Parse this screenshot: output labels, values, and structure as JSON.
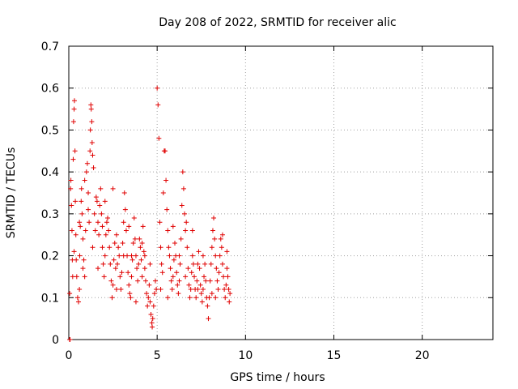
{
  "chart_data": {
    "type": "scatter",
    "title": "Day 208 of 2022, SRMTID for receiver alic",
    "xlabel": "GPS time / hours",
    "ylabel": "SRMTID / TECUs",
    "xlim": [
      0,
      24
    ],
    "ylim": [
      0,
      0.7
    ],
    "xticks": [
      0,
      5,
      10,
      15,
      20
    ],
    "xtick_labels": [
      "0",
      "5",
      "10",
      "15",
      "20"
    ],
    "yticks": [
      0,
      0.1,
      0.2,
      0.3,
      0.4,
      0.5,
      0.6,
      0.7
    ],
    "ytick_labels": [
      "0",
      "0.1",
      "0.2",
      "0.3",
      "0.4",
      "0.5",
      "0.6",
      "0.7"
    ],
    "grid": true,
    "marker": "+",
    "series_color": "#e00000",
    "series": [
      {
        "name": "SRMTID",
        "points": [
          [
            0.05,
            0.0
          ],
          [
            0.07,
            0.0
          ],
          [
            0.05,
            0.11
          ],
          [
            0.1,
            0.36
          ],
          [
            0.12,
            0.38
          ],
          [
            0.15,
            0.32
          ],
          [
            0.18,
            0.26
          ],
          [
            0.2,
            0.19
          ],
          [
            0.22,
            0.15
          ],
          [
            0.25,
            0.43
          ],
          [
            0.27,
            0.52
          ],
          [
            0.3,
            0.55
          ],
          [
            0.32,
            0.57
          ],
          [
            0.35,
            0.45
          ],
          [
            0.37,
            0.33
          ],
          [
            0.4,
            0.25
          ],
          [
            0.42,
            0.19
          ],
          [
            0.45,
            0.15
          ],
          [
            0.5,
            0.1
          ],
          [
            0.55,
            0.09
          ],
          [
            0.6,
            0.12
          ],
          [
            0.62,
            0.2
          ],
          [
            0.65,
            0.27
          ],
          [
            0.7,
            0.33
          ],
          [
            0.72,
            0.36
          ],
          [
            0.75,
            0.3
          ],
          [
            0.8,
            0.24
          ],
          [
            0.85,
            0.19
          ],
          [
            0.9,
            0.15
          ],
          [
            0.95,
            0.26
          ],
          [
            1.0,
            0.4
          ],
          [
            1.05,
            0.42
          ],
          [
            1.1,
            0.35
          ],
          [
            1.15,
            0.28
          ],
          [
            1.2,
            0.45
          ],
          [
            1.22,
            0.5
          ],
          [
            1.25,
            0.56
          ],
          [
            1.27,
            0.55
          ],
          [
            1.3,
            0.52
          ],
          [
            1.32,
            0.47
          ],
          [
            1.35,
            0.44
          ],
          [
            1.4,
            0.41
          ],
          [
            1.45,
            0.3
          ],
          [
            1.5,
            0.26
          ],
          [
            1.55,
            0.34
          ],
          [
            1.6,
            0.33
          ],
          [
            1.65,
            0.28
          ],
          [
            1.7,
            0.25
          ],
          [
            1.75,
            0.32
          ],
          [
            1.8,
            0.36
          ],
          [
            1.85,
            0.3
          ],
          [
            1.9,
            0.22
          ],
          [
            1.95,
            0.18
          ],
          [
            2.0,
            0.15
          ],
          [
            2.05,
            0.2
          ],
          [
            2.1,
            0.25
          ],
          [
            2.15,
            0.28
          ],
          [
            2.2,
            0.29
          ],
          [
            2.25,
            0.26
          ],
          [
            2.3,
            0.22
          ],
          [
            2.35,
            0.18
          ],
          [
            2.4,
            0.14
          ],
          [
            2.45,
            0.1
          ],
          [
            2.5,
            0.13
          ],
          [
            2.55,
            0.19
          ],
          [
            2.6,
            0.23
          ],
          [
            2.65,
            0.17
          ],
          [
            2.7,
            0.12
          ],
          [
            2.75,
            0.18
          ],
          [
            2.8,
            0.22
          ],
          [
            2.85,
            0.2
          ],
          [
            2.9,
            0.15
          ],
          [
            2.95,
            0.12
          ],
          [
            3.0,
            0.16
          ],
          [
            3.05,
            0.23
          ],
          [
            3.1,
            0.28
          ],
          [
            3.15,
            0.35
          ],
          [
            3.2,
            0.31
          ],
          [
            3.25,
            0.26
          ],
          [
            3.3,
            0.2
          ],
          [
            3.35,
            0.16
          ],
          [
            3.4,
            0.13
          ],
          [
            3.45,
            0.11
          ],
          [
            3.5,
            0.1
          ],
          [
            3.55,
            0.15
          ],
          [
            3.6,
            0.19
          ],
          [
            3.65,
            0.23
          ],
          [
            3.7,
            0.29
          ],
          [
            3.75,
            0.24
          ],
          [
            3.8,
            0.2
          ],
          [
            3.85,
            0.17
          ],
          [
            3.9,
            0.14
          ],
          [
            3.95,
            0.18
          ],
          [
            4.0,
            0.24
          ],
          [
            4.05,
            0.22
          ],
          [
            4.1,
            0.19
          ],
          [
            4.15,
            0.23
          ],
          [
            4.2,
            0.27
          ],
          [
            4.25,
            0.21
          ],
          [
            4.3,
            0.17
          ],
          [
            4.35,
            0.14
          ],
          [
            4.4,
            0.11
          ],
          [
            4.45,
            0.08
          ],
          [
            4.5,
            0.1
          ],
          [
            4.55,
            0.13
          ],
          [
            4.6,
            0.09
          ],
          [
            4.65,
            0.06
          ],
          [
            4.7,
            0.04
          ],
          [
            4.72,
            0.03
          ],
          [
            4.75,
            0.05
          ],
          [
            4.8,
            0.08
          ],
          [
            4.85,
            0.11
          ],
          [
            4.9,
            0.14
          ],
          [
            4.95,
            0.12
          ],
          [
            5.0,
            0.6
          ],
          [
            5.05,
            0.56
          ],
          [
            5.1,
            0.48
          ],
          [
            5.15,
            0.28
          ],
          [
            5.2,
            0.22
          ],
          [
            5.25,
            0.18
          ],
          [
            5.3,
            0.16
          ],
          [
            5.35,
            0.35
          ],
          [
            5.4,
            0.45
          ],
          [
            5.45,
            0.45
          ],
          [
            5.5,
            0.38
          ],
          [
            5.55,
            0.31
          ],
          [
            5.6,
            0.26
          ],
          [
            5.65,
            0.22
          ],
          [
            5.7,
            0.2
          ],
          [
            5.75,
            0.17
          ],
          [
            5.8,
            0.14
          ],
          [
            5.85,
            0.12
          ],
          [
            5.9,
            0.15
          ],
          [
            5.95,
            0.19
          ],
          [
            6.0,
            0.23
          ],
          [
            6.05,
            0.2
          ],
          [
            6.1,
            0.16
          ],
          [
            6.15,
            0.13
          ],
          [
            6.2,
            0.11
          ],
          [
            6.25,
            0.14
          ],
          [
            6.3,
            0.18
          ],
          [
            6.35,
            0.24
          ],
          [
            6.4,
            0.32
          ],
          [
            6.45,
            0.4
          ],
          [
            6.5,
            0.36
          ],
          [
            6.55,
            0.3
          ],
          [
            6.6,
            0.26
          ],
          [
            6.65,
            0.28
          ],
          [
            6.7,
            0.22
          ],
          [
            6.75,
            0.17
          ],
          [
            6.8,
            0.13
          ],
          [
            6.85,
            0.1
          ],
          [
            6.9,
            0.12
          ],
          [
            6.95,
            0.16
          ],
          [
            7.0,
            0.2
          ],
          [
            7.05,
            0.18
          ],
          [
            7.1,
            0.15
          ],
          [
            7.15,
            0.12
          ],
          [
            7.2,
            0.1
          ],
          [
            7.25,
            0.14
          ],
          [
            7.3,
            0.18
          ],
          [
            7.35,
            0.21
          ],
          [
            7.4,
            0.17
          ],
          [
            7.45,
            0.13
          ],
          [
            7.5,
            0.11
          ],
          [
            7.55,
            0.09
          ],
          [
            7.6,
            0.12
          ],
          [
            7.65,
            0.15
          ],
          [
            7.7,
            0.18
          ],
          [
            7.75,
            0.14
          ],
          [
            7.8,
            0.1
          ],
          [
            7.85,
            0.08
          ],
          [
            7.9,
            0.05
          ],
          [
            7.95,
            0.1
          ],
          [
            8.0,
            0.14
          ],
          [
            8.05,
            0.18
          ],
          [
            8.1,
            0.22
          ],
          [
            8.15,
            0.26
          ],
          [
            8.2,
            0.29
          ],
          [
            8.25,
            0.24
          ],
          [
            8.3,
            0.2
          ],
          [
            8.35,
            0.17
          ],
          [
            8.4,
            0.14
          ],
          [
            8.45,
            0.12
          ],
          [
            8.5,
            0.16
          ],
          [
            8.55,
            0.2
          ],
          [
            8.6,
            0.24
          ],
          [
            8.65,
            0.22
          ],
          [
            8.7,
            0.18
          ],
          [
            8.75,
            0.15
          ],
          [
            8.8,
            0.12
          ],
          [
            8.85,
            0.1
          ],
          [
            8.9,
            0.13
          ],
          [
            8.95,
            0.17
          ],
          [
            9.0,
            0.15
          ],
          [
            9.05,
            0.12
          ],
          [
            9.08,
            0.09
          ],
          [
            9.12,
            0.11
          ],
          [
            0.6,
            0.28
          ],
          [
            0.9,
            0.38
          ],
          [
            1.1,
            0.31
          ],
          [
            1.35,
            0.22
          ],
          [
            1.65,
            0.17
          ],
          [
            2.05,
            0.33
          ],
          [
            2.5,
            0.36
          ],
          [
            3.1,
            0.2
          ],
          [
            3.4,
            0.27
          ],
          [
            3.8,
            0.09
          ],
          [
            4.3,
            0.2
          ],
          [
            5.6,
            0.1
          ],
          [
            5.9,
            0.27
          ],
          [
            6.25,
            0.2
          ],
          [
            7.0,
            0.26
          ],
          [
            7.6,
            0.2
          ],
          [
            8.1,
            0.11
          ],
          [
            8.7,
            0.25
          ],
          [
            0.3,
            0.21
          ],
          [
            0.8,
            0.17
          ],
          [
            1.9,
            0.27
          ],
          [
            2.7,
            0.25
          ],
          [
            3.55,
            0.2
          ],
          [
            4.15,
            0.15
          ],
          [
            4.6,
            0.18
          ],
          [
            5.2,
            0.12
          ],
          [
            6.6,
            0.15
          ],
          [
            7.3,
            0.12
          ],
          [
            8.3,
            0.1
          ],
          [
            8.95,
            0.21
          ]
        ]
      }
    ]
  }
}
